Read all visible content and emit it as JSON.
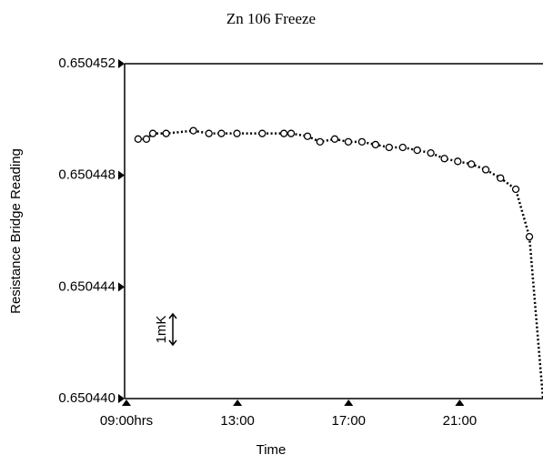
{
  "chart_data": {
    "type": "line",
    "title": "Zn 106 Freeze",
    "x_label": "Time",
    "y_label": "Resistance Bridge Reading",
    "annotation": "1mK",
    "xlim": [
      9,
      24
    ],
    "ylim": [
      0.65044,
      0.650452
    ],
    "xticks": [
      {
        "value": 9,
        "label": "09:00hrs"
      },
      {
        "value": 13,
        "label": "13:00"
      },
      {
        "value": 17,
        "label": "17:00"
      },
      {
        "value": 21,
        "label": "21:00"
      }
    ],
    "yticks": [
      {
        "value": 0.65044,
        "label": "0.650440"
      },
      0.650444,
      0.650448,
      0.650452
    ],
    "color": "#000000",
    "x": [
      9.42,
      9.72,
      9.95,
      10.43,
      11.41,
      11.97,
      12.42,
      12.98,
      13.89,
      14.67,
      14.93,
      15.52,
      15.97,
      16.5,
      16.99,
      17.48,
      17.97,
      18.46,
      18.95,
      19.47,
      19.96,
      20.45,
      20.93,
      21.42,
      21.94,
      22.47,
      23.02,
      23.51
    ],
    "values": [
      0.6504493,
      0.6504493,
      0.6504495,
      0.6504495,
      0.6504496,
      0.6504495,
      0.6504495,
      0.6504495,
      0.6504495,
      0.6504495,
      0.6504495,
      0.6504494,
      0.6504492,
      0.6504493,
      0.6504492,
      0.6504492,
      0.6504491,
      0.650449,
      0.650449,
      0.6504489,
      0.6504488,
      0.6504486,
      0.6504485,
      0.6504484,
      0.6504482,
      0.6504479,
      0.6504475,
      0.6504458
    ],
    "end_x": 24,
    "end_value": 0.65044
  }
}
